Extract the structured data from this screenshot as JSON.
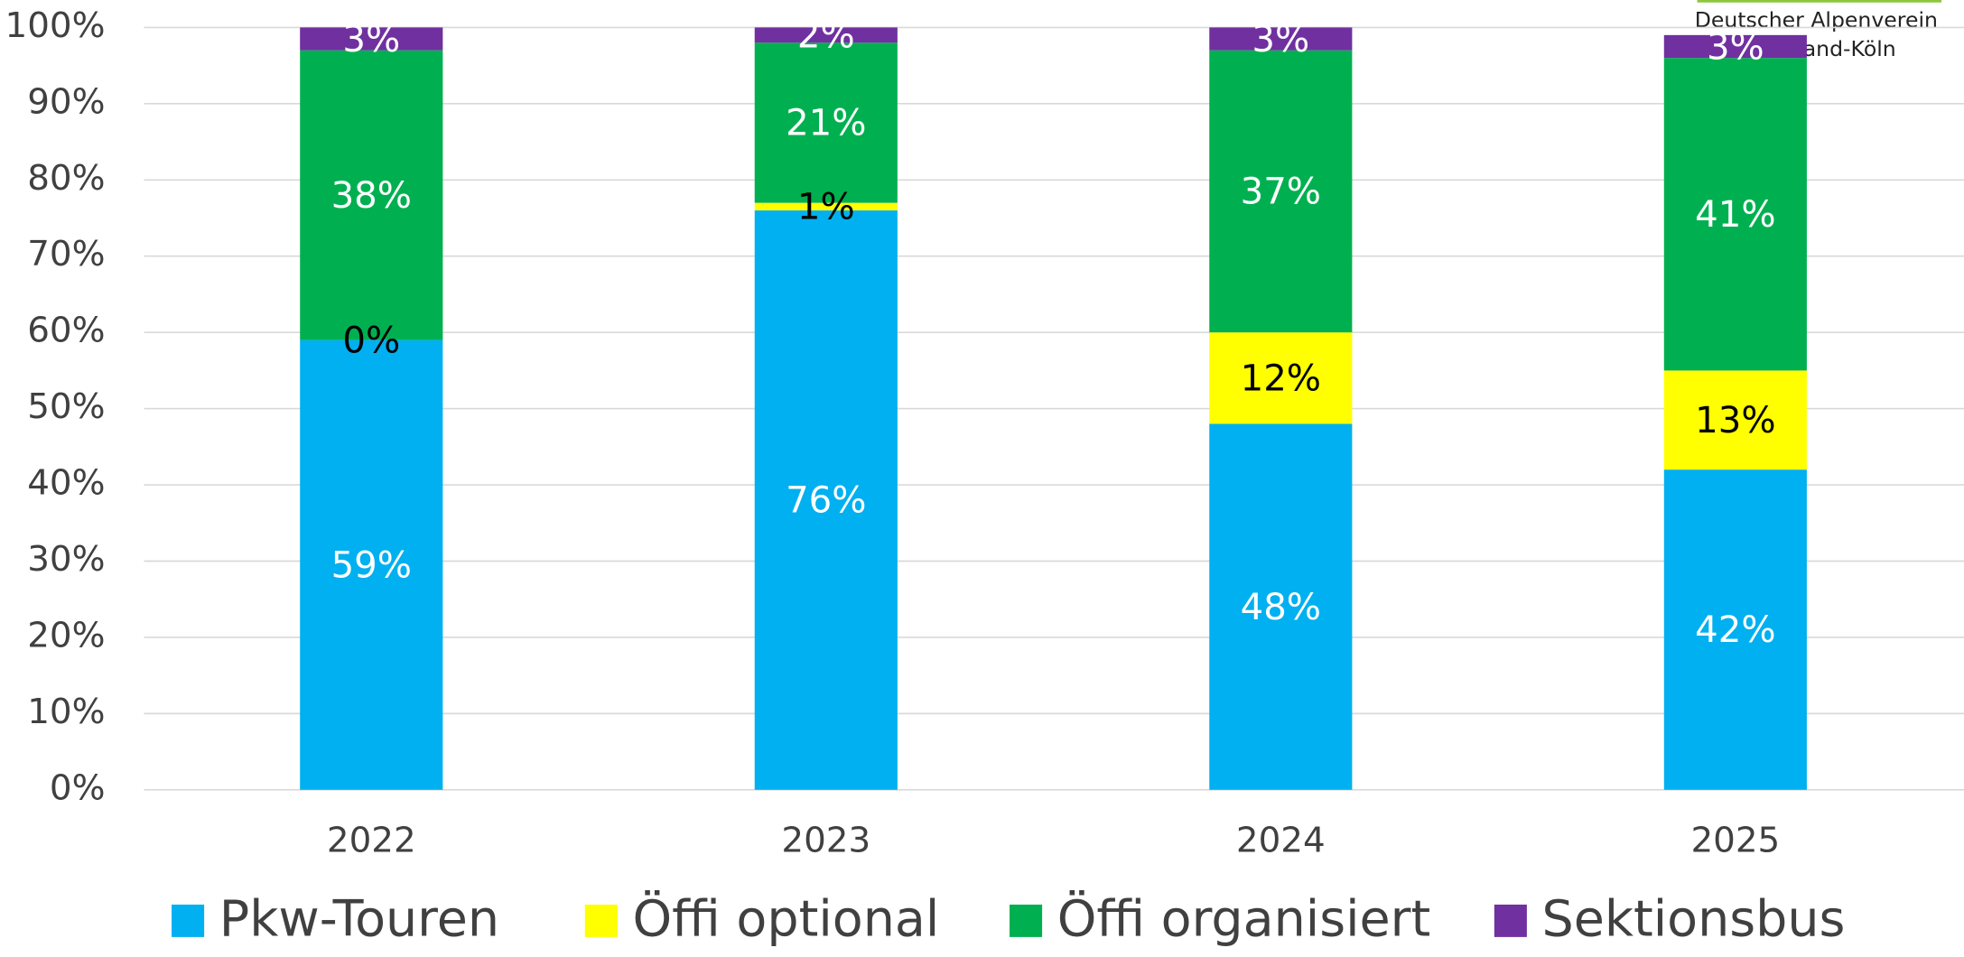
{
  "chart_data": {
    "type": "stacked_bar",
    "logo": [
      "Deutscher Alpenverein",
      "Rheinland-Köln"
    ],
    "categories": [
      "2022",
      "2023",
      "2024",
      "2025"
    ],
    "series": [
      {
        "name": "Pkw-Touren",
        "color": "#00b0f0",
        "values": [
          59,
          76,
          48,
          42
        ],
        "value_labels": [
          "59%",
          "76%",
          "48%",
          "42%"
        ]
      },
      {
        "name": "Öffi optional",
        "color": "#ffff00",
        "values": [
          0,
          1,
          12,
          13
        ],
        "value_labels": [
          "0%",
          "1%",
          "12%",
          "13%"
        ]
      },
      {
        "name": "Öffi organisiert",
        "color": "#00b050",
        "values": [
          38,
          21,
          37,
          41
        ],
        "value_labels": [
          "38%",
          "21%",
          "37%",
          "41%"
        ]
      },
      {
        "name": "Sektionsbus",
        "color": "#7030a0",
        "values": [
          3,
          2,
          3,
          3
        ],
        "value_labels": [
          "3%",
          "2%",
          "3%",
          "3%"
        ]
      }
    ],
    "ylim": [
      0,
      100
    ],
    "yticks": [
      {
        "value": 0,
        "label": "0%"
      },
      {
        "value": 10,
        "label": "10%"
      },
      {
        "value": 20,
        "label": "20%"
      },
      {
        "value": 30,
        "label": "30%"
      },
      {
        "value": 40,
        "label": "40%"
      },
      {
        "value": 50,
        "label": "50%"
      },
      {
        "value": 60,
        "label": "60%"
      },
      {
        "value": 70,
        "label": "70%"
      },
      {
        "value": 80,
        "label": "80%"
      },
      {
        "value": 90,
        "label": "90%"
      },
      {
        "value": 100,
        "label": "100%"
      }
    ],
    "grid": true,
    "legend": "bottom"
  }
}
